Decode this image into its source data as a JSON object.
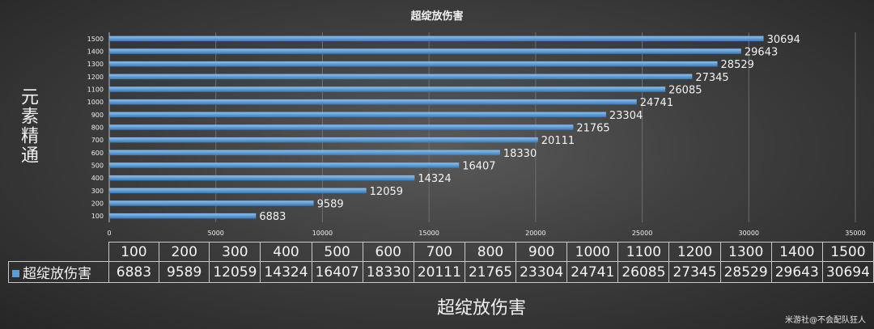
{
  "chart_data": {
    "type": "bar",
    "orientation": "horizontal",
    "title": "超绽放伤害",
    "xlabel": "超绽放伤害",
    "ylabel": "元素精通",
    "categories": [
      "100",
      "200",
      "300",
      "400",
      "500",
      "600",
      "700",
      "800",
      "900",
      "1000",
      "1100",
      "1200",
      "1300",
      "1400",
      "1500"
    ],
    "series": [
      {
        "name": "超绽放伤害",
        "values": [
          6883,
          9589,
          12059,
          14324,
          16407,
          18330,
          20111,
          21765,
          23304,
          24741,
          26085,
          27345,
          28529,
          29643,
          30694
        ]
      }
    ],
    "xlim": [
      0,
      35000
    ],
    "x_ticks": [
      "0",
      "5000",
      "10000",
      "15000",
      "20000",
      "25000",
      "30000",
      "35000"
    ],
    "grid": true,
    "data_labels": true,
    "data_table": true,
    "bar_color": "#5b9bd5"
  },
  "watermark": "米游社@不会配队狂人"
}
